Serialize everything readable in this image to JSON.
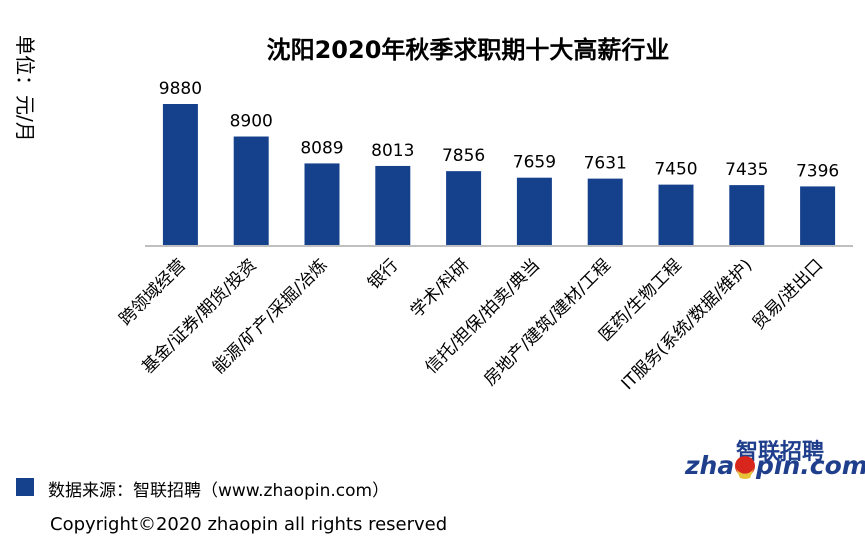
{
  "chart_data": {
    "type": "bar",
    "title": "沈阳2020年秋季求职期十大高薪行业",
    "ylabel": "单位：元/月",
    "categories": [
      "跨领域经营",
      "基金/证券/期货/投资",
      "能源/矿产/采掘/冶炼",
      "银行",
      "学术/科研",
      "信托/担保/拍卖/典当",
      "房地产/建筑/建材/工程",
      "医药/生物工程",
      "IT服务(系统/数据/维护)",
      "贸易/进出口"
    ],
    "values": [
      9880,
      8900,
      8089,
      8013,
      7856,
      7659,
      7631,
      7450,
      7435,
      7396
    ],
    "ylim": [
      5600,
      10000
    ],
    "grid": false,
    "bar_color": "#15408c"
  },
  "legend": {
    "text": "数据来源：智联招聘（www.zhaopin.com）",
    "color": "#15408c"
  },
  "copyright": "Copyright©2020 zhaopin all rights reserved",
  "logo": {
    "cn": "智联招聘",
    "en_left": "zha",
    "en_right": "pin.com",
    "accent": "#e8c13a",
    "dot": "#d9261c"
  }
}
